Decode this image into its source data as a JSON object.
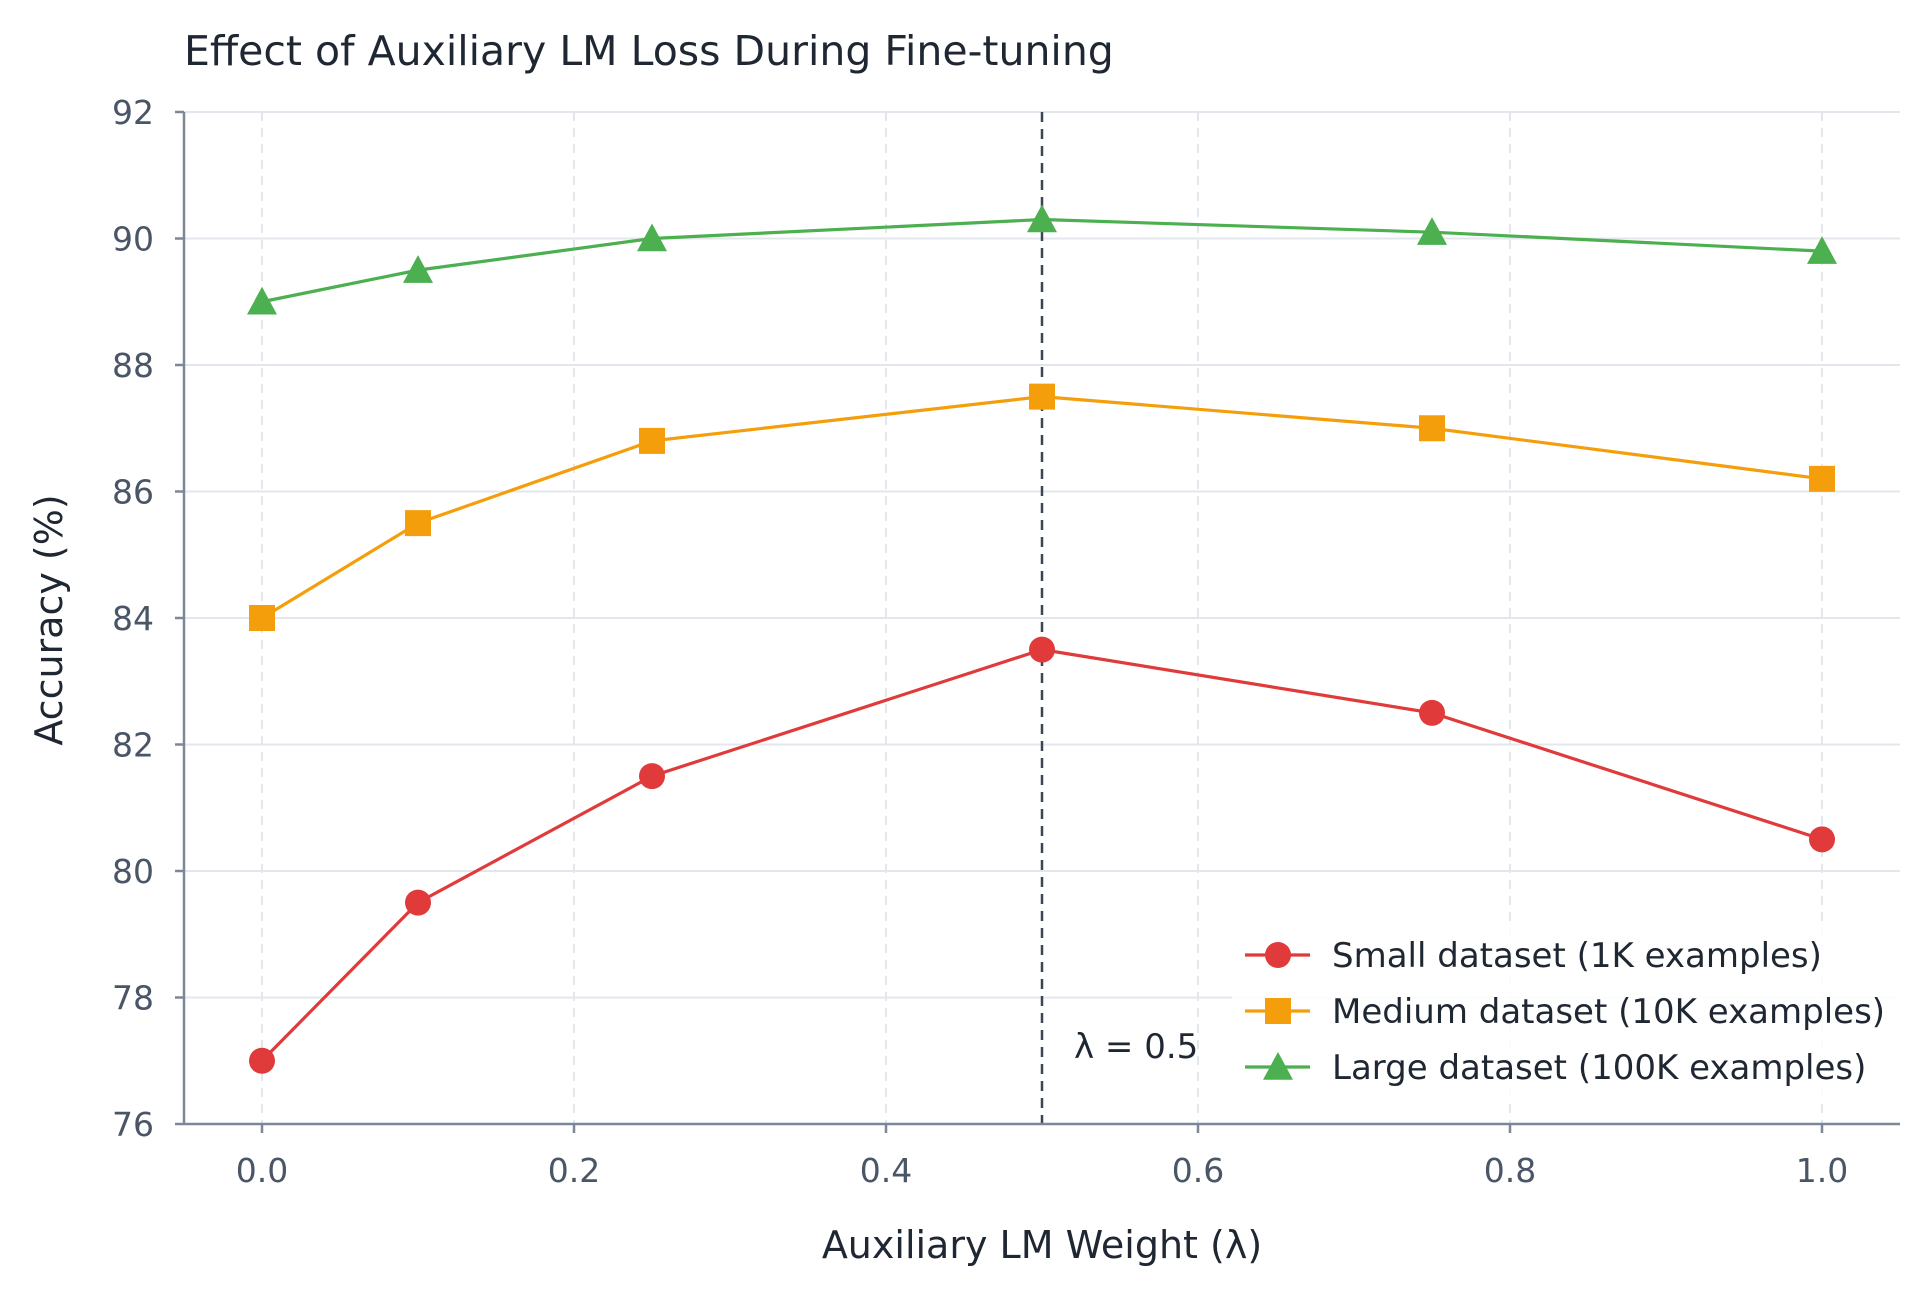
{
  "chart_data": {
    "type": "line",
    "title": "Effect of Auxiliary LM Loss During Fine-tuning",
    "xlabel": "Auxiliary LM Weight (λ)",
    "ylabel": "Accuracy (%)",
    "xlim": [
      -0.05,
      1.05
    ],
    "ylim": [
      76,
      92
    ],
    "x_ticks": [
      0.0,
      0.2,
      0.4,
      0.6,
      0.8,
      1.0
    ],
    "x_tick_labels": [
      "0.0",
      "0.2",
      "0.4",
      "0.6",
      "0.8",
      "1.0"
    ],
    "y_ticks": [
      76,
      78,
      80,
      82,
      84,
      86,
      88,
      90,
      92
    ],
    "y_tick_labels": [
      "76",
      "78",
      "80",
      "82",
      "84",
      "86",
      "88",
      "90",
      "92"
    ],
    "grid": true,
    "legend_position": "lower-right",
    "x": [
      0.0,
      0.1,
      0.25,
      0.5,
      0.75,
      1.0
    ],
    "series": [
      {
        "name": "Small dataset (1K examples)",
        "color": "#e03a3a",
        "marker": "circle",
        "values": [
          77.0,
          79.5,
          81.5,
          83.5,
          82.5,
          80.5
        ]
      },
      {
        "name": "Medium dataset (10K examples)",
        "color": "#f59e0b",
        "marker": "square",
        "values": [
          84.0,
          85.5,
          86.8,
          87.5,
          87.0,
          86.2
        ]
      },
      {
        "name": "Large dataset (100K examples)",
        "color": "#4caf50",
        "marker": "triangle",
        "values": [
          89.0,
          89.5,
          90.0,
          90.3,
          90.1,
          89.8
        ]
      }
    ],
    "reference_line": {
      "x": 0.5,
      "style": "dashed",
      "color": "#3a4556",
      "label": "λ = 0.5"
    }
  }
}
